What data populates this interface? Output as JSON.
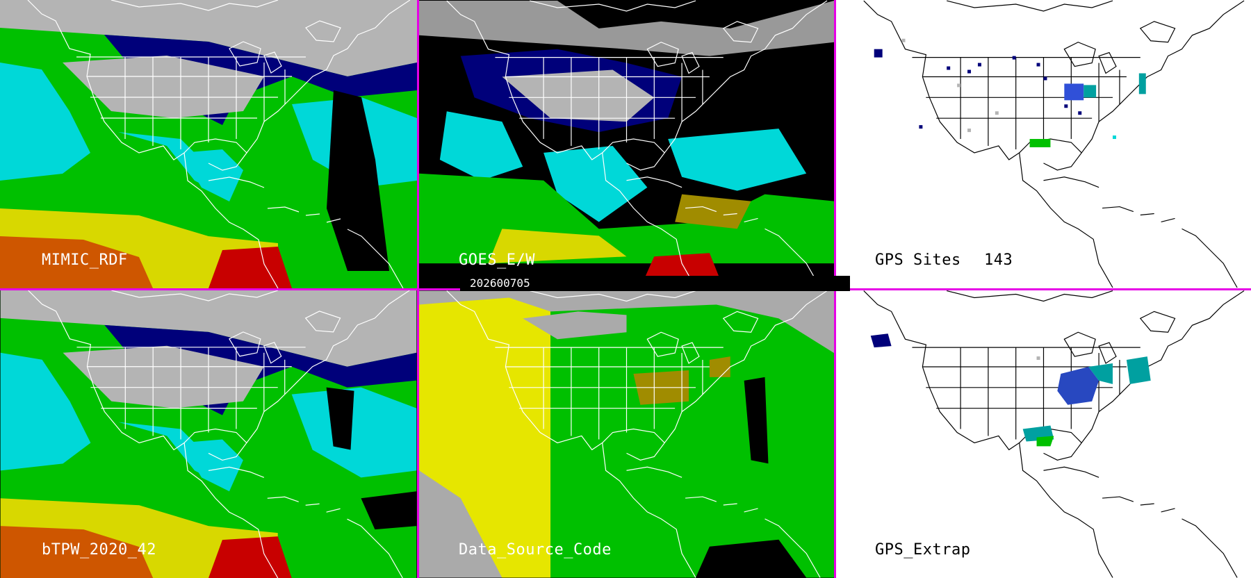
{
  "panels": {
    "mimic": {
      "label": "MIMIC_RDF"
    },
    "goes": {
      "label": "GOES_E/W"
    },
    "gps_sites": {
      "label": "GPS Sites",
      "count": "143"
    },
    "btpw": {
      "label": "bTPW_2020_42"
    },
    "data_source": {
      "label": "Data_Source_Code"
    },
    "gps_extrap": {
      "label": "GPS_Extrap"
    }
  },
  "date_stamp": "202600705",
  "colors": {
    "divider": "#e600e6",
    "very_dry": "#b4b4b4",
    "dry": "#00007a",
    "moist_low": "#3050d8",
    "moist": "#00d8d8",
    "moist_high": "#00c000",
    "wet": "#d8d800",
    "very_wet": "#c80000",
    "no_data": "#000000",
    "map_line_dark": "#000000",
    "map_line_light": "#ffffff",
    "ds_yellow": "#e6e600",
    "ds_green": "#00c000",
    "ds_olive": "#a08c00",
    "ds_gray": "#aaaaaa"
  },
  "icons": [
    "moisture-field",
    "coastline",
    "state-borders",
    "gps-site-marker"
  ]
}
